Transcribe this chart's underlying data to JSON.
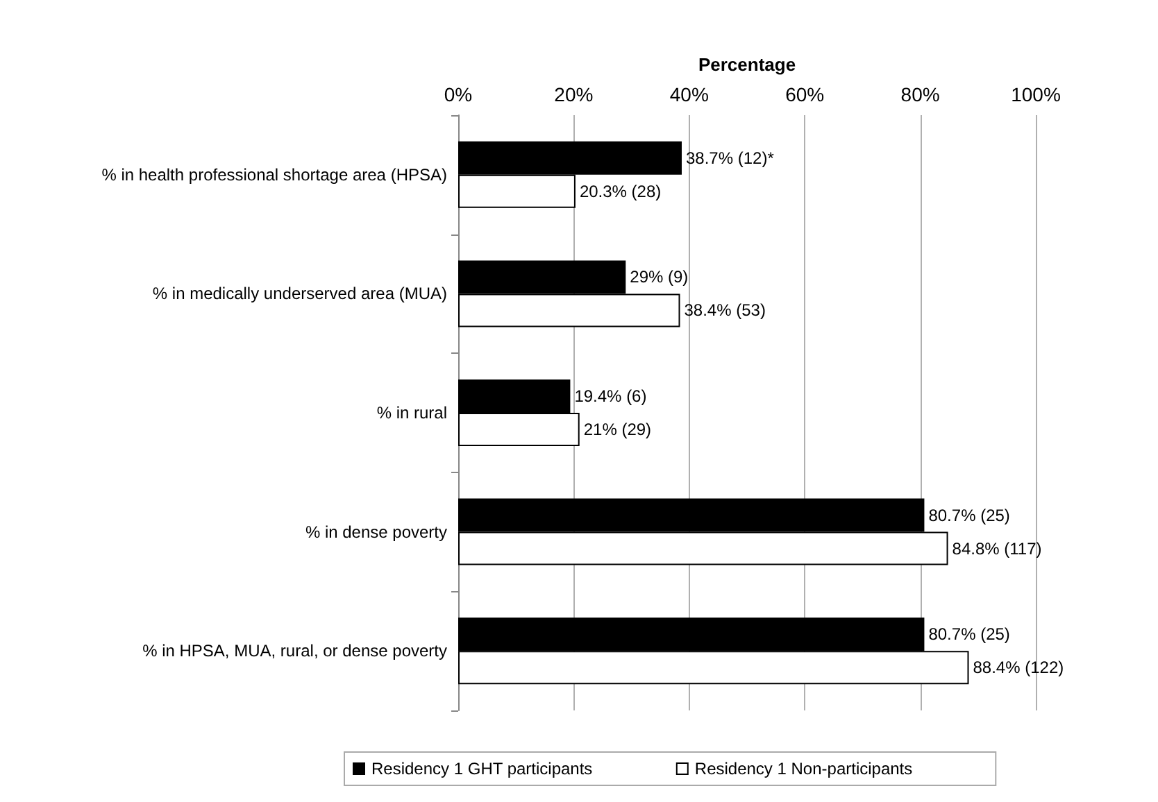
{
  "chart_data": {
    "type": "bar",
    "orientation": "horizontal",
    "xlabel": "Percentage",
    "categories": [
      "% in health professional shortage area (HPSA)",
      "% in medically underserved area (MUA)",
      "% in rural",
      "% in dense poverty",
      "% in HPSA, MUA, rural, or dense poverty"
    ],
    "series": [
      {
        "name": "Residency 1 GHT participants",
        "color": "#000000",
        "values": [
          38.7,
          29,
          19.4,
          80.7,
          80.7
        ],
        "value_labels": [
          "38.7% (12)*",
          "29% (9)",
          "19.4% (6)",
          "80.7% (25)",
          "80.7% (25)"
        ]
      },
      {
        "name": "Residency 1 Non-participants",
        "color": "#ffffff",
        "values": [
          20.3,
          38.4,
          21,
          84.8,
          88.4
        ],
        "value_labels": [
          "20.3% (28)",
          "38.4% (53)",
          "21% (29)",
          "84.8% (117)",
          "88.4% (122)"
        ]
      }
    ],
    "xlim": [
      0,
      100
    ],
    "xticks": [
      {
        "value": 0,
        "label": "0%"
      },
      {
        "value": 20,
        "label": "20%"
      },
      {
        "value": 40,
        "label": "40%"
      },
      {
        "value": 60,
        "label": "60%"
      },
      {
        "value": 80,
        "label": "80%"
      },
      {
        "value": 100,
        "label": "100%"
      }
    ],
    "grid": "x",
    "legend": "bottom"
  }
}
